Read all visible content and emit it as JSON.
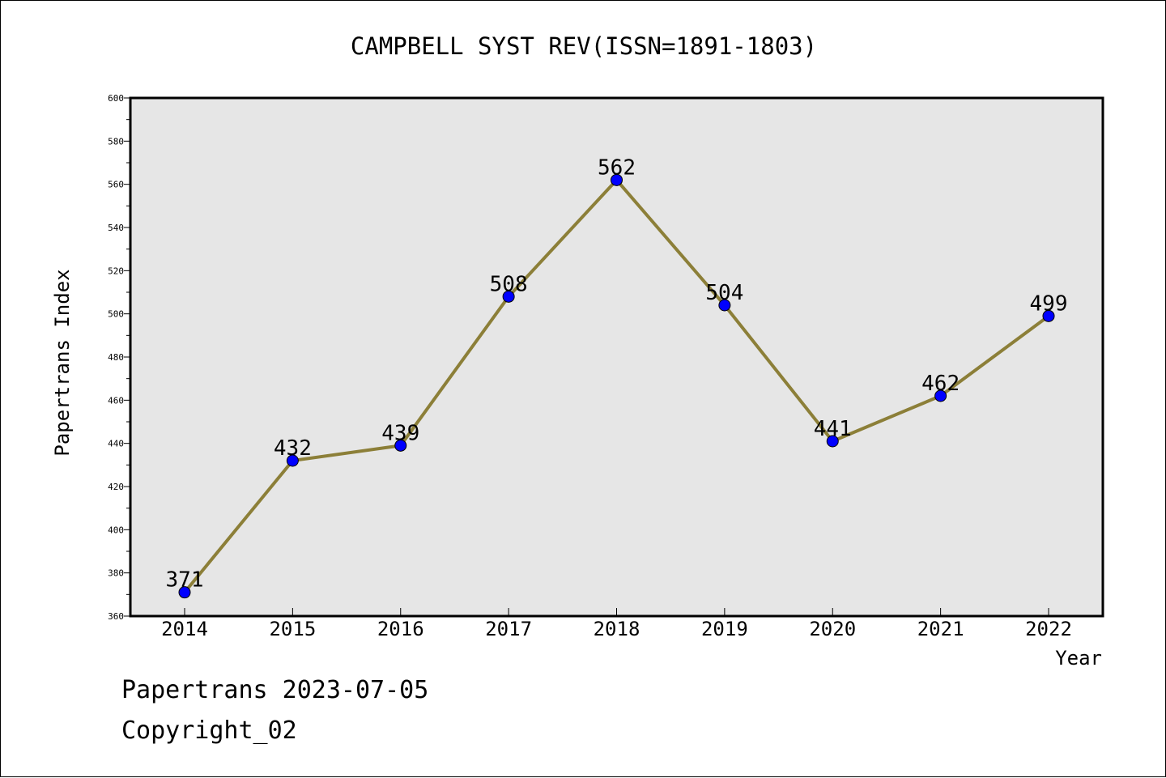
{
  "chart_data": {
    "type": "line",
    "title": "CAMPBELL SYST REV(ISSN=1891-1803)",
    "xlabel": "Year",
    "ylabel": "Papertrans Index",
    "categories": [
      "2014",
      "2015",
      "2016",
      "2017",
      "2018",
      "2019",
      "2020",
      "2021",
      "2022"
    ],
    "series": [
      {
        "values": [
          371,
          432,
          439,
          508,
          562,
          504,
          441,
          462,
          499
        ]
      }
    ],
    "ylim": [
      360,
      600
    ],
    "yticks": [
      360,
      380,
      400,
      420,
      440,
      460,
      480,
      500,
      520,
      540,
      560,
      580,
      600
    ],
    "grid": false,
    "data_labels": true,
    "colors": {
      "line": "#8c7f38",
      "marker": "#0000ff",
      "plot_background": "#e6e6e6"
    }
  },
  "footer": {
    "line1": "Papertrans 2023-07-05",
    "line2": "Copyright_02"
  }
}
